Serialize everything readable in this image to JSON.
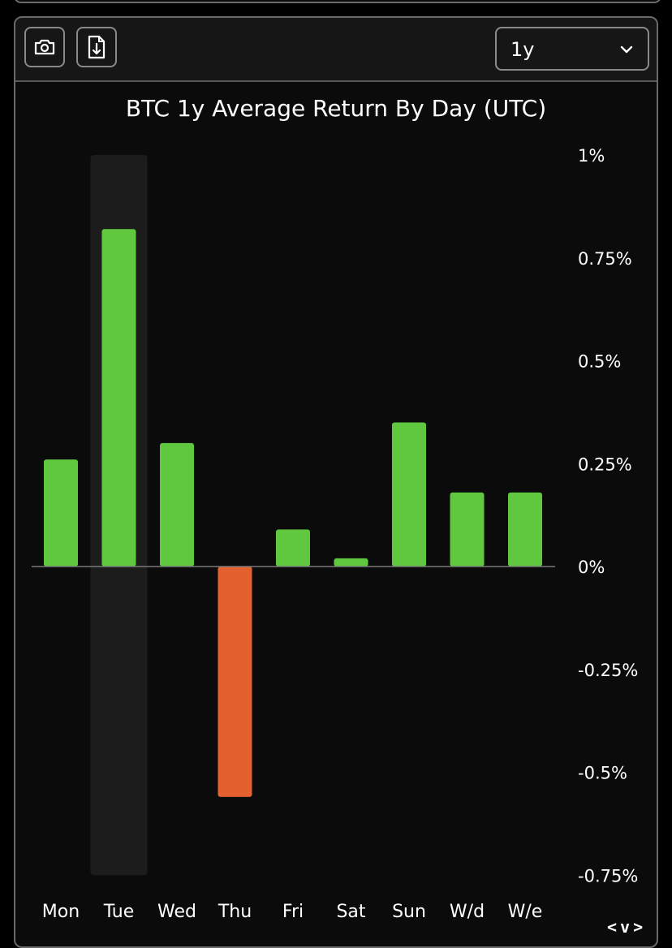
{
  "toolbar": {
    "screenshot_icon": "camera-icon",
    "export_icon": "file-download-icon",
    "period_select": {
      "value": "1y",
      "icon": "chevron-down-icon"
    }
  },
  "colors": {
    "positive": "#5fc83e",
    "negative": "#e4602e",
    "highlight": "#1c1c1c",
    "zero_line": "#7a7a7a",
    "text": "#ffffff"
  },
  "chart_data": {
    "type": "bar",
    "title": "BTC 1y Average Return By Day (UTC)",
    "xlabel": "",
    "ylabel": "",
    "categories": [
      "Mon",
      "Tue",
      "Wed",
      "Thu",
      "Fri",
      "Sat",
      "Sun",
      "W/d",
      "W/e"
    ],
    "values": [
      0.26,
      0.82,
      0.3,
      -0.56,
      0.09,
      0.02,
      0.35,
      0.18,
      0.18
    ],
    "unit": "%",
    "ylim": [
      -0.75,
      1.0
    ],
    "yticks": [
      "1%",
      "0.75%",
      "0.5%",
      "0.25%",
      "0%",
      "-0.25%",
      "-0.5%",
      "-0.75%"
    ],
    "ytick_values": [
      1.0,
      0.75,
      0.5,
      0.25,
      0,
      -0.25,
      -0.5,
      -0.75
    ],
    "highlighted_category": "Tue",
    "y_axis_side": "right",
    "grid": false,
    "legend": false
  },
  "footer": {
    "nav_prev": "<",
    "nav_down": "v",
    "nav_next": ">"
  }
}
